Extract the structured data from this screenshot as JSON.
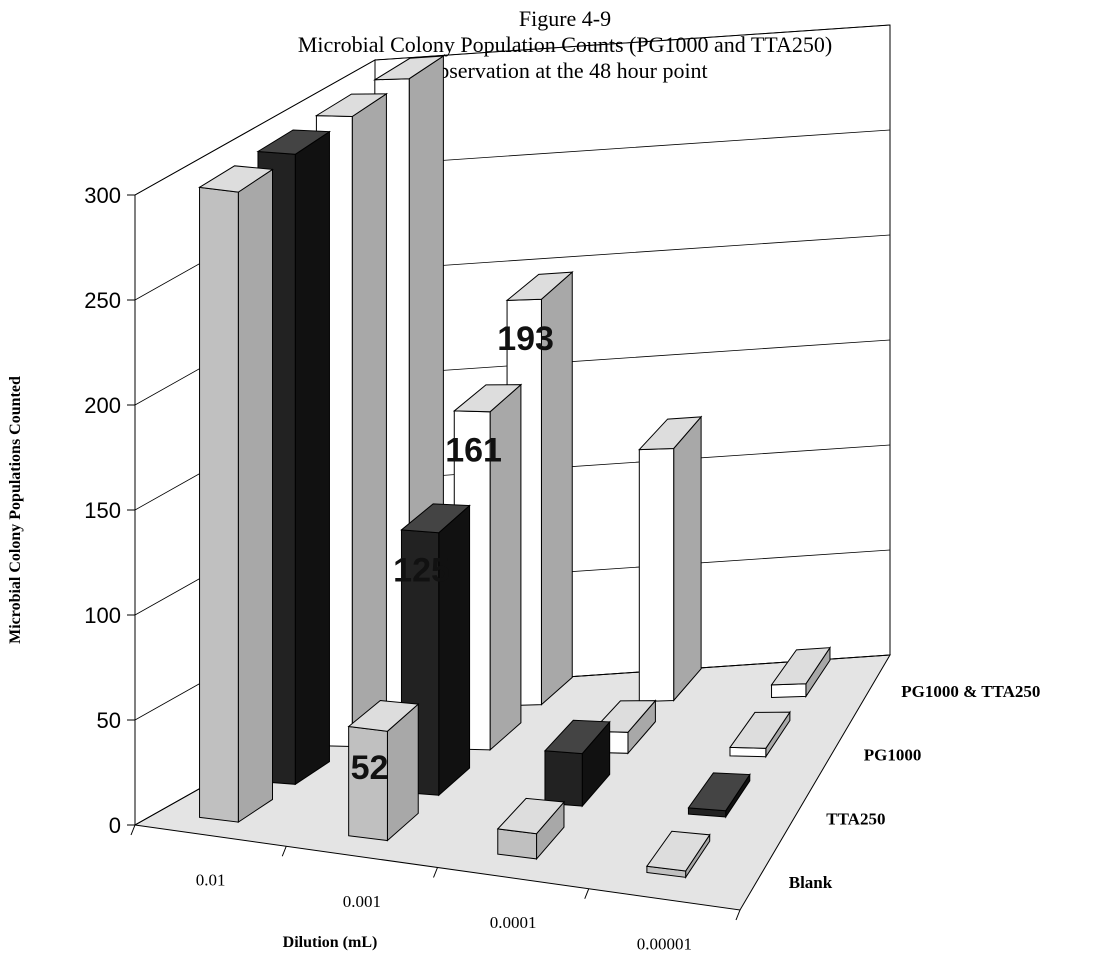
{
  "chart_data": {
    "type": "bar3d",
    "title": "Figure 4-9",
    "subtitle": "Microbial Colony Population Counts (PG1000 and TTA250)",
    "subtitle2": "Observation at the 48 hour point",
    "x_label": "Dilution (mL)",
    "y_label": "Microbial Colony Populations Counted",
    "categories": [
      "0.01",
      "0.001",
      "0.0001",
      "0.00001"
    ],
    "series": [
      {
        "name": "Blank",
        "color": "#c0c0c0",
        "values": [
          300,
          52,
          12,
          3
        ],
        "value_labels": [
          null,
          "52",
          null,
          null
        ]
      },
      {
        "name": "TTA250",
        "color": "#222222",
        "values": [
          300,
          125,
          25,
          3
        ],
        "value_labels": [
          null,
          "125",
          null,
          null
        ]
      },
      {
        "name": "PG1000",
        "color": "#ffffff",
        "values": [
          300,
          161,
          10,
          4
        ],
        "value_labels": [
          null,
          "161",
          null,
          null
        ]
      },
      {
        "name": "PG1000 & TTA250",
        "color": "#ffffff",
        "values": [
          300,
          193,
          120,
          6
        ],
        "value_labels": [
          null,
          "193",
          null,
          null
        ]
      }
    ],
    "ylim": [
      0,
      300
    ],
    "yticks": [
      0,
      50,
      100,
      150,
      200,
      250,
      300
    ],
    "grid": true
  }
}
